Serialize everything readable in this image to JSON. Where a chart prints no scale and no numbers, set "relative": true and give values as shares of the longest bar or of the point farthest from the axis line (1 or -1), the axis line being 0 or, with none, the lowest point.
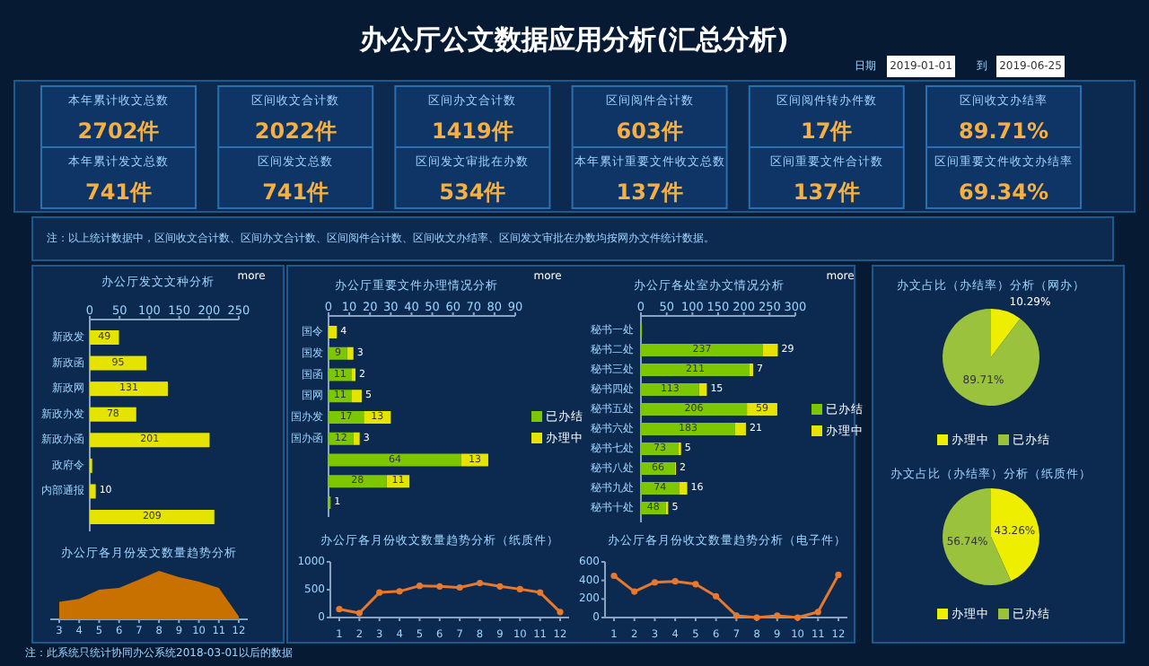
{
  "chart_data": [
    {
      "type": "other",
      "title": "办公厅公文数据应用分析(汇总分析)",
      "annotations": [
        "日期",
        "2019-01-01",
        "到",
        "2019-06-25",
        "本年累计收文总数",
        "2702件",
        "本年累计发文总数",
        "741件",
        "区间收文合计数",
        "2022件",
        "区间发文总数",
        "741件",
        "区间办文合计数",
        "1419件",
        "区间发文审批在办数",
        "534件",
        "区间阅件合计数",
        "603件",
        "本年累计重要文件收文总数",
        "137件",
        "区间阅件转办件数",
        "17件",
        "区间重要文件合计数",
        "137件",
        "区间收文办结率",
        "89.71%",
        "区间重要文件收文办结率",
        "69.34%",
        "注：以上统计数据中，区间收文合计数、区间办文合计数、区间阅件合计数、区间收文办结率、区间发文审批在办数均按网办文件统计数据。",
        "注：此系统只统计协同办公系统2018-03-01以后的数据"
      ]
    },
    {
      "type": "bar",
      "orientation": "horizontal",
      "title": "办公厅发文文种分析",
      "annotations": [
        "more"
      ],
      "categories": [
        "新政发",
        "新政函",
        "新政网",
        "新政办发",
        "新政办函",
        "政府令",
        "内部通报",
        null
      ],
      "values": [
        49,
        95,
        131,
        78,
        201,
        4,
        10,
        209
      ],
      "color": "#e4e400",
      "value_labels": [
        "49",
        "95",
        "131",
        "78",
        "201",
        null,
        "10",
        "209"
      ],
      "xlim": [
        0,
        250
      ],
      "xticks": [
        0,
        50,
        100,
        150,
        200,
        250
      ]
    },
    {
      "type": "area",
      "title": "办公厅各月份发文数量趋势分析",
      "relative": true,
      "categories": [
        "3",
        "4",
        "5",
        "6",
        "7",
        "8",
        "9",
        "10",
        "11",
        "12"
      ],
      "values": [
        0.36,
        0.42,
        0.61,
        0.65,
        0.82,
        1,
        0.87,
        0.78,
        0.65,
        0.06
      ],
      "color": "#c87000"
    },
    {
      "type": "bar",
      "orientation": "horizontal",
      "stacked": true,
      "title": "办公厅重要文件办理情况分析",
      "annotations": [
        "more"
      ],
      "categories": [
        "国令",
        "国发",
        "国函",
        "国网",
        "国办发",
        "国办函",
        null,
        null,
        null
      ],
      "series": [
        {
          "name": "已办结",
          "color": "#7cc700",
          "values": [
            null,
            9,
            11,
            11,
            17,
            12,
            64,
            28,
            1
          ]
        },
        {
          "name": "办理中",
          "color": "#e4e400",
          "values": [
            4,
            3,
            2,
            5,
            13,
            3,
            13,
            11,
            null
          ]
        }
      ],
      "data_labels": true,
      "legend": "right",
      "xlim": [
        0,
        90
      ],
      "xticks": [
        0,
        10,
        20,
        30,
        40,
        50,
        60,
        70,
        80,
        90
      ]
    },
    {
      "type": "bar",
      "orientation": "horizontal",
      "stacked": true,
      "title": "办公厅各处室办文情况分析",
      "annotations": [
        "more"
      ],
      "categories": [
        "秘书一处",
        "秘书二处",
        "秘书三处",
        "秘书四处",
        "秘书五处",
        "秘书六处",
        "秘书七处",
        "秘书八处",
        "秘书九处",
        "秘书十处"
      ],
      "series": [
        {
          "name": "已办结",
          "color": "#7cc700",
          "values": [
            2,
            237,
            211,
            113,
            206,
            183,
            73,
            66,
            74,
            48
          ],
          "value_labels": [
            null,
            "237",
            "211",
            "113",
            "206",
            "183",
            "73",
            "66",
            "74",
            "48"
          ]
        },
        {
          "name": "办理中",
          "color": "#e4e400",
          "values": [
            null,
            29,
            7,
            15,
            59,
            21,
            5,
            2,
            16,
            5
          ],
          "value_labels": [
            null,
            "29",
            "7",
            "15",
            "59",
            "21",
            "5",
            "2",
            "16",
            "5"
          ]
        }
      ],
      "legend": "right",
      "xlim": [
        0,
        300
      ],
      "xticks": [
        0,
        50,
        100,
        150,
        200,
        250,
        300
      ]
    },
    {
      "type": "line",
      "title": "办公厅各月份收文数量趋势分析（纸质件）",
      "marker": "circle",
      "categories": [
        "1",
        "2",
        "3",
        "4",
        "5",
        "6",
        "7",
        "8",
        "9",
        "10",
        "11",
        "12"
      ],
      "values": [
        150,
        80,
        450,
        470,
        570,
        560,
        540,
        620,
        560,
        510,
        450,
        100
      ],
      "color": "#e8782c",
      "ylim": [
        0,
        1000
      ],
      "yticks": [
        0,
        500,
        1000
      ]
    },
    {
      "type": "line",
      "title": "办公厅各月份收文数量趋势分析（电子件）",
      "marker": "circle",
      "categories": [
        "1",
        "2",
        "3",
        "4",
        "5",
        "6",
        "7",
        "8",
        "9",
        "10",
        "11",
        "12"
      ],
      "values": [
        450,
        280,
        380,
        390,
        360,
        230,
        20,
        0,
        20,
        0,
        60,
        460
      ],
      "color": "#e8782c",
      "ylim": [
        0,
        600
      ],
      "yticks": [
        0,
        200,
        400,
        600
      ]
    },
    {
      "type": "pie",
      "title": "办文占比（办结率）分析（网办）",
      "categories": [
        "办理中",
        "已办结"
      ],
      "values": [
        10.29,
        89.71
      ],
      "colors": [
        "#eeee00",
        "#9ac23c"
      ],
      "value_labels": [
        "10.29%",
        "89.71%"
      ],
      "legend": "bottom"
    },
    {
      "type": "pie",
      "title": "办文占比（办结率）分析（纸质件）",
      "categories": [
        "办理中",
        "已办结"
      ],
      "values": [
        43.26,
        56.74
      ],
      "colors": [
        "#eeee00",
        "#9ac23c"
      ],
      "value_labels": [
        "43.26%",
        "56.74%"
      ],
      "legend": "bottom"
    }
  ]
}
